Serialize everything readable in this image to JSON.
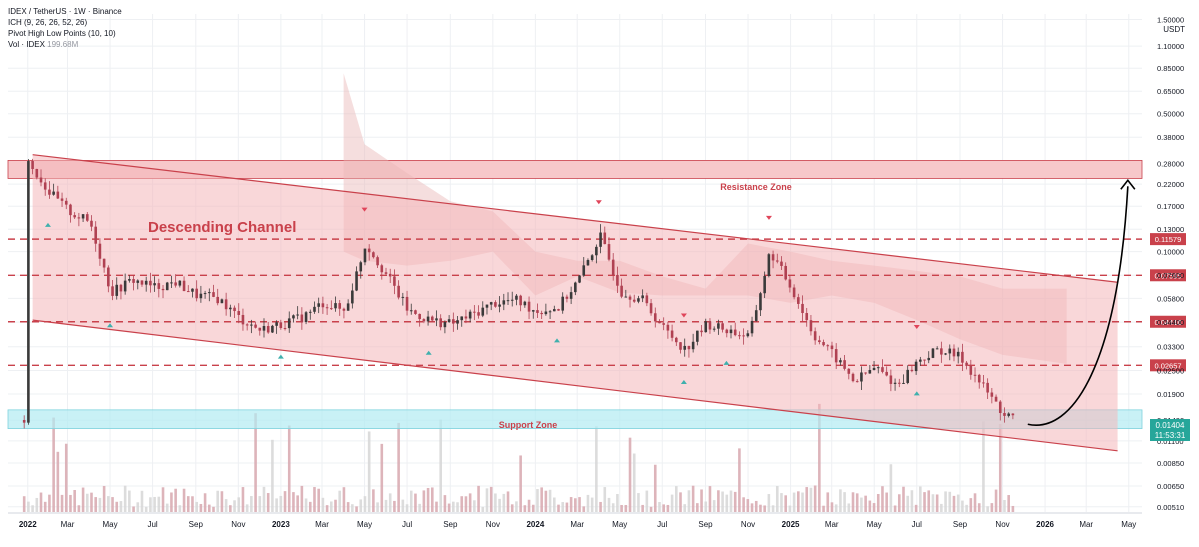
{
  "legend": {
    "line1": "IDEX / TetherUS · 1W · Binance",
    "line2": "ICH (9, 26, 26, 52, 26)",
    "line3": "Pivot High Low Points (10, 10)",
    "line4_label": "Vol · IDEX",
    "line4_value": "199.68M"
  },
  "currency": "USDT",
  "annotations": {
    "channel_label": "Descending Channel",
    "resistance_label": "Resistance Zone",
    "support_label": "Support Zone",
    "current_price": "0.01404",
    "countdown": "11:53:31"
  },
  "colors": {
    "channel_fill": "#f4b6b9",
    "channel_line": "#c9414b",
    "resistance_fill": "#f7c8ca",
    "support_fill": "#b2ebf2",
    "dashed_level": "#c9414b",
    "candle_up": "#3a3a3a",
    "candle_down": "#b04152",
    "volume_down": "#d7a7ae",
    "volume_up": "#d6d6d6",
    "pivot_high": "#e0455a",
    "pivot_low": "#3fb0ad",
    "cloud": "#e8b5b5",
    "price_label_bg": "#c9414b",
    "support_label_bg": "#26a69a"
  },
  "chart_data": {
    "type": "candlestick",
    "title": "IDEX / TetherUS · 1W · Binance",
    "y_scale": "log",
    "ylim": [
      0.0048,
      1.6
    ],
    "x_range": [
      "2022-01",
      "2026-05"
    ],
    "x_tick_labels": [
      "2022",
      "Mar",
      "May",
      "Jul",
      "Sep",
      "Nov",
      "2023",
      "Mar",
      "May",
      "Jul",
      "Sep",
      "Nov",
      "2024",
      "Mar",
      "May",
      "Jul",
      "Sep",
      "Nov",
      "2025",
      "Mar",
      "May",
      "Jul",
      "Sep",
      "Nov",
      "2026",
      "Mar",
      "May"
    ],
    "y_tick_labels": [
      "1.50000",
      "1.10000",
      "0.85000",
      "0.65000",
      "0.50000",
      "0.38000",
      "0.28000",
      "0.22000",
      "0.17000",
      "0.13000",
      "0.10000",
      "0.07600",
      "0.05800",
      "0.04400",
      "0.03300",
      "0.02500",
      "0.01900",
      "0.01400",
      "0.01100",
      "0.00850",
      "0.00650",
      "0.00510"
    ],
    "y_tick_values": [
      1.5,
      1.1,
      0.85,
      0.65,
      0.5,
      0.38,
      0.28,
      0.22,
      0.17,
      0.13,
      0.1,
      0.076,
      0.058,
      0.044,
      0.033,
      0.025,
      0.019,
      0.014,
      0.011,
      0.0085,
      0.0065,
      0.0051
    ],
    "key_levels": [
      0.11579,
      0.07595,
      0.04416,
      0.02657
    ],
    "key_level_labels": [
      "0.11579",
      "0.07595",
      "0.04416",
      "0.02657"
    ],
    "resistance_zone": [
      0.235,
      0.29
    ],
    "support_zone": [
      0.0127,
      0.0158
    ],
    "current_price": 0.01404,
    "price_path": [
      [
        "2022-01",
        0.29
      ],
      [
        "2022-02",
        0.2
      ],
      [
        "2022-03",
        0.16
      ],
      [
        "2022-04",
        0.14
      ],
      [
        "2022-05",
        0.062
      ],
      [
        "2022-06",
        0.072
      ],
      [
        "2022-07",
        0.066
      ],
      [
        "2022-08",
        0.07
      ],
      [
        "2022-09",
        0.06
      ],
      [
        "2022-10",
        0.058
      ],
      [
        "2022-11",
        0.046
      ],
      [
        "2022-12",
        0.04
      ],
      [
        "2023-01",
        0.043
      ],
      [
        "2023-02",
        0.047
      ],
      [
        "2023-03",
        0.055
      ],
      [
        "2023-04",
        0.05
      ],
      [
        "2023-05",
        0.11
      ],
      [
        "2023-06",
        0.075
      ],
      [
        "2023-07",
        0.05
      ],
      [
        "2023-08",
        0.045
      ],
      [
        "2023-09",
        0.043
      ],
      [
        "2023-10",
        0.048
      ],
      [
        "2023-11",
        0.055
      ],
      [
        "2023-12",
        0.057
      ],
      [
        "2024-01",
        0.05
      ],
      [
        "2024-02",
        0.052
      ],
      [
        "2024-03",
        0.072
      ],
      [
        "2024-04",
        0.12
      ],
      [
        "2024-05",
        0.063
      ],
      [
        "2024-06",
        0.057
      ],
      [
        "2024-07",
        0.041
      ],
      [
        "2024-08",
        0.032
      ],
      [
        "2024-09",
        0.043
      ],
      [
        "2024-10",
        0.04
      ],
      [
        "2024-11",
        0.037
      ],
      [
        "2024-12",
        0.1
      ],
      [
        "2025-01",
        0.065
      ],
      [
        "2025-02",
        0.038
      ],
      [
        "2025-03",
        0.03
      ],
      [
        "2025-04",
        0.022
      ],
      [
        "2025-05",
        0.026
      ],
      [
        "2025-06",
        0.021
      ],
      [
        "2025-07",
        0.028
      ],
      [
        "2025-08",
        0.032
      ],
      [
        "2025-09",
        0.029
      ],
      [
        "2025-10",
        0.021
      ],
      [
        "2025-11",
        0.015
      ],
      [
        "2025-11-20",
        0.01404
      ]
    ],
    "projection": {
      "from": [
        "2025-11-20",
        0.014
      ],
      "to": [
        "2026-04",
        0.23
      ]
    },
    "series": [
      {
        "name": "Vol · IDEX",
        "type": "volume",
        "last_value": "199.68M"
      }
    ],
    "pivots_high": [
      "2023-05",
      "2024-04",
      "2024-08",
      "2024-12",
      "2025-07"
    ],
    "pivots_low": [
      "2022-02",
      "2022-05",
      "2023-01",
      "2023-08",
      "2024-02",
      "2024-08",
      "2024-10",
      "2025-07"
    ],
    "grid": true,
    "legend_position": "top-left"
  }
}
